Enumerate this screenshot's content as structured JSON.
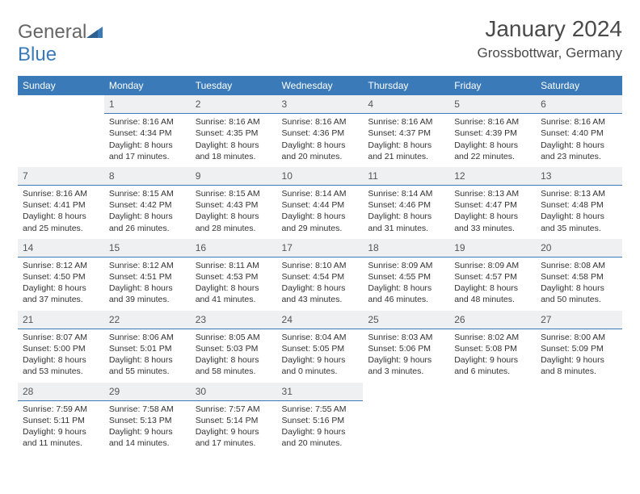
{
  "brand": {
    "part1": "General",
    "part2": "Blue"
  },
  "title": "January 2024",
  "location": "Grossbottwar, Germany",
  "colors": {
    "header_bg": "#3a7ab8",
    "header_text": "#ffffff",
    "daynum_bg": "#eef0f2",
    "daynum_border": "#3a7ab8",
    "body_bg": "#ffffff",
    "text": "#333333"
  },
  "weekdays": [
    "Sunday",
    "Monday",
    "Tuesday",
    "Wednesday",
    "Thursday",
    "Friday",
    "Saturday"
  ],
  "weeks": [
    [
      null,
      {
        "n": "1",
        "sr": "Sunrise: 8:16 AM",
        "ss": "Sunset: 4:34 PM",
        "d1": "Daylight: 8 hours",
        "d2": "and 17 minutes."
      },
      {
        "n": "2",
        "sr": "Sunrise: 8:16 AM",
        "ss": "Sunset: 4:35 PM",
        "d1": "Daylight: 8 hours",
        "d2": "and 18 minutes."
      },
      {
        "n": "3",
        "sr": "Sunrise: 8:16 AM",
        "ss": "Sunset: 4:36 PM",
        "d1": "Daylight: 8 hours",
        "d2": "and 20 minutes."
      },
      {
        "n": "4",
        "sr": "Sunrise: 8:16 AM",
        "ss": "Sunset: 4:37 PM",
        "d1": "Daylight: 8 hours",
        "d2": "and 21 minutes."
      },
      {
        "n": "5",
        "sr": "Sunrise: 8:16 AM",
        "ss": "Sunset: 4:39 PM",
        "d1": "Daylight: 8 hours",
        "d2": "and 22 minutes."
      },
      {
        "n": "6",
        "sr": "Sunrise: 8:16 AM",
        "ss": "Sunset: 4:40 PM",
        "d1": "Daylight: 8 hours",
        "d2": "and 23 minutes."
      }
    ],
    [
      {
        "n": "7",
        "sr": "Sunrise: 8:16 AM",
        "ss": "Sunset: 4:41 PM",
        "d1": "Daylight: 8 hours",
        "d2": "and 25 minutes."
      },
      {
        "n": "8",
        "sr": "Sunrise: 8:15 AM",
        "ss": "Sunset: 4:42 PM",
        "d1": "Daylight: 8 hours",
        "d2": "and 26 minutes."
      },
      {
        "n": "9",
        "sr": "Sunrise: 8:15 AM",
        "ss": "Sunset: 4:43 PM",
        "d1": "Daylight: 8 hours",
        "d2": "and 28 minutes."
      },
      {
        "n": "10",
        "sr": "Sunrise: 8:14 AM",
        "ss": "Sunset: 4:44 PM",
        "d1": "Daylight: 8 hours",
        "d2": "and 29 minutes."
      },
      {
        "n": "11",
        "sr": "Sunrise: 8:14 AM",
        "ss": "Sunset: 4:46 PM",
        "d1": "Daylight: 8 hours",
        "d2": "and 31 minutes."
      },
      {
        "n": "12",
        "sr": "Sunrise: 8:13 AM",
        "ss": "Sunset: 4:47 PM",
        "d1": "Daylight: 8 hours",
        "d2": "and 33 minutes."
      },
      {
        "n": "13",
        "sr": "Sunrise: 8:13 AM",
        "ss": "Sunset: 4:48 PM",
        "d1": "Daylight: 8 hours",
        "d2": "and 35 minutes."
      }
    ],
    [
      {
        "n": "14",
        "sr": "Sunrise: 8:12 AM",
        "ss": "Sunset: 4:50 PM",
        "d1": "Daylight: 8 hours",
        "d2": "and 37 minutes."
      },
      {
        "n": "15",
        "sr": "Sunrise: 8:12 AM",
        "ss": "Sunset: 4:51 PM",
        "d1": "Daylight: 8 hours",
        "d2": "and 39 minutes."
      },
      {
        "n": "16",
        "sr": "Sunrise: 8:11 AM",
        "ss": "Sunset: 4:53 PM",
        "d1": "Daylight: 8 hours",
        "d2": "and 41 minutes."
      },
      {
        "n": "17",
        "sr": "Sunrise: 8:10 AM",
        "ss": "Sunset: 4:54 PM",
        "d1": "Daylight: 8 hours",
        "d2": "and 43 minutes."
      },
      {
        "n": "18",
        "sr": "Sunrise: 8:09 AM",
        "ss": "Sunset: 4:55 PM",
        "d1": "Daylight: 8 hours",
        "d2": "and 46 minutes."
      },
      {
        "n": "19",
        "sr": "Sunrise: 8:09 AM",
        "ss": "Sunset: 4:57 PM",
        "d1": "Daylight: 8 hours",
        "d2": "and 48 minutes."
      },
      {
        "n": "20",
        "sr": "Sunrise: 8:08 AM",
        "ss": "Sunset: 4:58 PM",
        "d1": "Daylight: 8 hours",
        "d2": "and 50 minutes."
      }
    ],
    [
      {
        "n": "21",
        "sr": "Sunrise: 8:07 AM",
        "ss": "Sunset: 5:00 PM",
        "d1": "Daylight: 8 hours",
        "d2": "and 53 minutes."
      },
      {
        "n": "22",
        "sr": "Sunrise: 8:06 AM",
        "ss": "Sunset: 5:01 PM",
        "d1": "Daylight: 8 hours",
        "d2": "and 55 minutes."
      },
      {
        "n": "23",
        "sr": "Sunrise: 8:05 AM",
        "ss": "Sunset: 5:03 PM",
        "d1": "Daylight: 8 hours",
        "d2": "and 58 minutes."
      },
      {
        "n": "24",
        "sr": "Sunrise: 8:04 AM",
        "ss": "Sunset: 5:05 PM",
        "d1": "Daylight: 9 hours",
        "d2": "and 0 minutes."
      },
      {
        "n": "25",
        "sr": "Sunrise: 8:03 AM",
        "ss": "Sunset: 5:06 PM",
        "d1": "Daylight: 9 hours",
        "d2": "and 3 minutes."
      },
      {
        "n": "26",
        "sr": "Sunrise: 8:02 AM",
        "ss": "Sunset: 5:08 PM",
        "d1": "Daylight: 9 hours",
        "d2": "and 6 minutes."
      },
      {
        "n": "27",
        "sr": "Sunrise: 8:00 AM",
        "ss": "Sunset: 5:09 PM",
        "d1": "Daylight: 9 hours",
        "d2": "and 8 minutes."
      }
    ],
    [
      {
        "n": "28",
        "sr": "Sunrise: 7:59 AM",
        "ss": "Sunset: 5:11 PM",
        "d1": "Daylight: 9 hours",
        "d2": "and 11 minutes."
      },
      {
        "n": "29",
        "sr": "Sunrise: 7:58 AM",
        "ss": "Sunset: 5:13 PM",
        "d1": "Daylight: 9 hours",
        "d2": "and 14 minutes."
      },
      {
        "n": "30",
        "sr": "Sunrise: 7:57 AM",
        "ss": "Sunset: 5:14 PM",
        "d1": "Daylight: 9 hours",
        "d2": "and 17 minutes."
      },
      {
        "n": "31",
        "sr": "Sunrise: 7:55 AM",
        "ss": "Sunset: 5:16 PM",
        "d1": "Daylight: 9 hours",
        "d2": "and 20 minutes."
      },
      null,
      null,
      null
    ]
  ]
}
